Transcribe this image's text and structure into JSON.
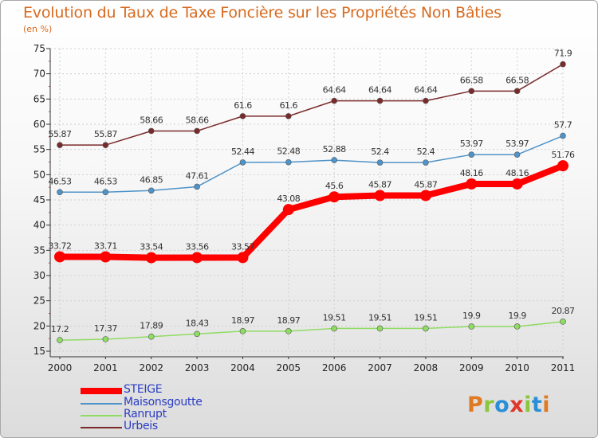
{
  "page": {
    "title": "Evolution du Taux de Taxe Foncière sur les Propriétés Non Bâties",
    "unit": "(en %)"
  },
  "logo": {
    "text": "Proxiti",
    "colors": [
      "#e07a22",
      "#8cc63f",
      "#2a8fd6",
      "#e0372a",
      "#8cc63f",
      "#2a8fd6",
      "#e07a22"
    ]
  },
  "chart_data": {
    "type": "line",
    "title": "Evolution du Taux de Taxe Foncière sur les Propriétés Non Bâties",
    "ylabel": "(en %)",
    "ylim": [
      15,
      75
    ],
    "yticks": [
      15,
      20,
      25,
      30,
      35,
      40,
      45,
      50,
      55,
      60,
      65,
      70,
      75
    ],
    "x": [
      "2000",
      "2001",
      "2002",
      "2003",
      "2004",
      "2005",
      "2006",
      "2007",
      "2008",
      "2009",
      "2010",
      "2011"
    ],
    "grid": true,
    "legend_position": "bottom-left",
    "series": [
      {
        "name": "STEIGE",
        "color": "#ff0000",
        "values": [
          33.72,
          33.71,
          33.54,
          33.56,
          33.57,
          43.08,
          45.6,
          45.87,
          45.87,
          48.16,
          48.16,
          51.76
        ],
        "labels": [
          "33.72",
          "33.71",
          "33.54",
          "33.56",
          "33.57",
          "43.08",
          "45.6",
          "45.87",
          "45.87",
          "48.16",
          "48.16",
          "51.76"
        ]
      },
      {
        "name": "Maisonsgoutte",
        "color": "#4f93c8",
        "values": [
          46.53,
          46.53,
          46.85,
          47.61,
          52.44,
          52.48,
          52.88,
          52.4,
          52.4,
          53.97,
          53.97,
          57.7
        ],
        "labels": [
          "46.53",
          "46.53",
          "46.85",
          "47.61",
          "52.44",
          "52.48",
          "52.88",
          "52.4",
          "52.4",
          "53.97",
          "53.97",
          "57.7"
        ]
      },
      {
        "name": "Ranrupt",
        "color": "#8fdc62",
        "values": [
          17.2,
          17.37,
          17.89,
          18.43,
          18.97,
          18.97,
          19.51,
          19.51,
          19.51,
          19.9,
          19.9,
          20.87
        ],
        "labels": [
          "17.2",
          "17.37",
          "17.89",
          "18.43",
          "18.97",
          "18.97",
          "19.51",
          "19.51",
          "19.51",
          "19.9",
          "19.9",
          "20.87"
        ]
      },
      {
        "name": "Urbeis",
        "color": "#7a2a2a",
        "values": [
          55.87,
          55.87,
          58.66,
          58.66,
          61.6,
          61.6,
          64.64,
          64.64,
          64.64,
          66.58,
          66.58,
          71.9
        ],
        "labels": [
          "55.87",
          "55.87",
          "58.66",
          "58.66",
          "61.6",
          "61.6",
          "64.64",
          "64.64",
          "64.64",
          "66.58",
          "66.58",
          "71.9"
        ]
      }
    ]
  }
}
